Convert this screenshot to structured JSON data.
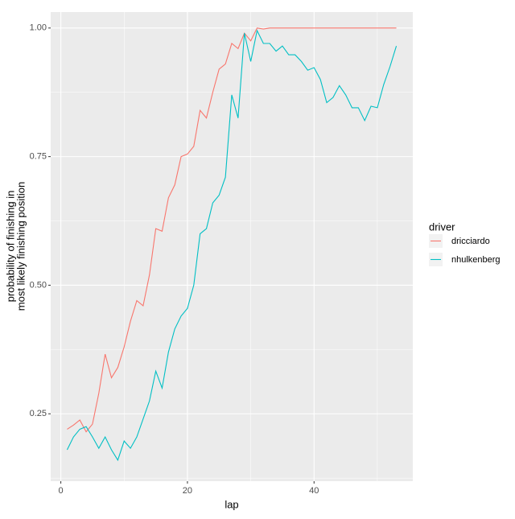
{
  "chart_data": {
    "type": "line",
    "x_label": "lap",
    "y_label": [
      "probability of finishing in",
      "most likely finishing position"
    ],
    "legend_title": "driver",
    "legend_position": "right",
    "grid": true,
    "x": [
      1,
      2,
      3,
      4,
      5,
      6,
      7,
      8,
      9,
      10,
      11,
      12,
      13,
      14,
      15,
      16,
      17,
      18,
      19,
      20,
      21,
      22,
      23,
      24,
      25,
      26,
      27,
      28,
      29,
      30,
      31,
      32,
      33,
      34,
      35,
      36,
      37,
      38,
      39,
      40,
      41,
      42,
      43,
      44,
      45,
      46,
      47,
      48,
      49,
      50,
      51,
      52,
      53
    ],
    "series": [
      {
        "name": "dricciardo",
        "color": "#F8766D",
        "values": [
          0.22,
          0.228,
          0.238,
          0.215,
          0.23,
          0.29,
          0.366,
          0.32,
          0.34,
          0.38,
          0.43,
          0.47,
          0.46,
          0.52,
          0.61,
          0.605,
          0.67,
          0.695,
          0.75,
          0.755,
          0.77,
          0.84,
          0.825,
          0.875,
          0.92,
          0.93,
          0.97,
          0.96,
          0.99,
          0.975,
          1.0,
          0.998,
          1.0,
          1.0,
          1.0,
          1.0,
          1.0,
          1.0,
          1.0,
          1.0,
          1.0,
          1.0,
          1.0,
          1.0,
          1.0,
          1.0,
          1.0,
          1.0,
          1.0,
          1.0,
          1.0,
          1.0,
          1.0
        ]
      },
      {
        "name": "nhulkenberg",
        "color": "#00BFC4",
        "values": [
          0.18,
          0.205,
          0.22,
          0.225,
          0.205,
          0.183,
          0.205,
          0.18,
          0.16,
          0.197,
          0.183,
          0.205,
          0.24,
          0.275,
          0.333,
          0.3,
          0.37,
          0.415,
          0.44,
          0.455,
          0.5,
          0.6,
          0.61,
          0.66,
          0.675,
          0.71,
          0.87,
          0.825,
          0.99,
          0.935,
          0.995,
          0.97,
          0.97,
          0.955,
          0.965,
          0.948,
          0.948,
          0.935,
          0.918,
          0.923,
          0.9,
          0.855,
          0.865,
          0.888,
          0.87,
          0.845,
          0.845,
          0.82,
          0.848,
          0.845,
          0.89,
          0.925,
          0.965
        ]
      }
    ],
    "xlim": [
      -1.6,
      55.6
    ],
    "xticks": [
      0,
      20,
      40
    ],
    "ylim": [
      0.119,
      1.031
    ],
    "yticks": [
      {
        "value": 0.25,
        "label": "0.25"
      },
      {
        "value": 0.5,
        "label": "0.50"
      },
      {
        "value": 0.75,
        "label": "0.75"
      },
      {
        "value": 1.0,
        "label": "1.00"
      }
    ]
  }
}
